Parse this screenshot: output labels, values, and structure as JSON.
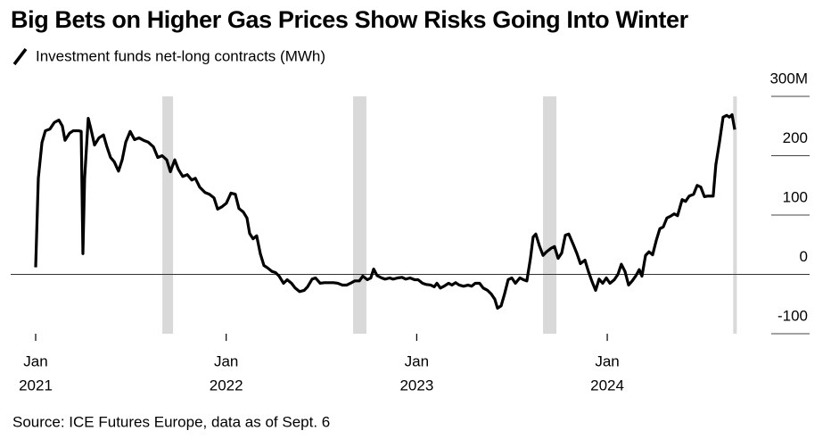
{
  "chart_data": {
    "type": "line",
    "title": "Big Bets on Higher Gas Prices Show Risks Going Into Winter",
    "source": "Source: ICE Futures Europe, data as of Sept. 6",
    "x": [
      2021.0,
      2021.014,
      2021.033,
      2021.051,
      2021.075,
      2021.098,
      2021.122,
      2021.14,
      2021.154,
      2021.178,
      2021.197,
      2021.225,
      2021.239,
      2021.248,
      2021.257,
      2021.276,
      2021.29,
      2021.309,
      2021.332,
      2021.356,
      2021.374,
      2021.393,
      2021.412,
      2021.435,
      2021.454,
      2021.473,
      2021.496,
      2021.519,
      2021.543,
      2021.566,
      2021.59,
      2021.618,
      2021.641,
      2021.664,
      2021.688,
      2021.707,
      2021.73,
      2021.749,
      2021.772,
      2021.796,
      2021.819,
      2021.838,
      2021.861,
      2021.889,
      2021.912,
      2021.936,
      2021.955,
      2021.978,
      2022.001,
      2022.025,
      2022.048,
      2022.067,
      2022.09,
      2022.109,
      2022.123,
      2022.141,
      2022.16,
      2022.179,
      2022.198,
      2022.217,
      2022.24,
      2022.259,
      2022.278,
      2022.301,
      2022.32,
      2022.343,
      2022.362,
      2022.385,
      2022.409,
      2022.427,
      2022.451,
      2022.469,
      2022.493,
      2022.516,
      2022.54,
      2022.563,
      2022.586,
      2022.61,
      2022.633,
      2022.652,
      2022.675,
      2022.699,
      2022.717,
      2022.741,
      2022.759,
      2022.774,
      2022.792,
      2022.816,
      2022.834,
      2022.858,
      2022.876,
      2022.9,
      2022.923,
      2022.942,
      2022.965,
      2022.989,
      2023.007,
      2023.031,
      2023.05,
      2023.073,
      2023.092,
      2023.106,
      2023.124,
      2023.143,
      2023.167,
      2023.185,
      2023.204,
      2023.223,
      2023.246,
      2023.27,
      2023.288,
      2023.307,
      2023.33,
      2023.349,
      2023.372,
      2023.391,
      2023.41,
      2023.424,
      2023.443,
      2023.461,
      2023.48,
      2023.499,
      2023.518,
      2023.541,
      2023.56,
      2023.578,
      2023.597,
      2023.611,
      2023.625,
      2023.644,
      2023.663,
      2023.681,
      2023.705,
      2023.723,
      2023.742,
      2023.761,
      2023.78,
      2023.798,
      2023.822,
      2023.841,
      2023.859,
      2023.883,
      2023.901,
      2023.92,
      2023.939,
      2023.957,
      2023.976,
      2023.995,
      2024.014,
      2024.037,
      2024.056,
      2024.074,
      2024.093,
      2024.112,
      2024.131,
      2024.149,
      2024.168,
      2024.182,
      2024.201,
      2024.219,
      2024.238,
      2024.257,
      2024.276,
      2024.294,
      2024.313,
      2024.332,
      2024.351,
      2024.369,
      2024.393,
      2024.411,
      2024.43,
      2024.453,
      2024.472,
      2024.491,
      2024.51,
      2024.528,
      2024.556,
      2024.57,
      2024.589,
      2024.608,
      2024.627,
      2024.641,
      2024.655,
      2024.669
    ],
    "series": [
      {
        "name": "Investment funds net-long contracts (MWh)",
        "color": "#000000",
        "values": [
          12,
          162,
          222,
          242,
          245,
          256,
          260,
          250,
          226,
          238,
          242,
          242,
          241,
          35,
          162,
          263,
          245,
          218,
          230,
          235,
          215,
          197,
          190,
          174,
          193,
          223,
          241,
          227,
          230,
          226,
          223,
          215,
          197,
          200,
          193,
          173,
          193,
          177,
          165,
          168,
          159,
          162,
          147,
          138,
          135,
          129,
          110,
          114,
          120,
          137,
          135,
          111,
          105,
          95,
          69,
          60,
          65,
          35,
          15,
          11,
          5,
          3,
          -3,
          -15,
          -9,
          -15,
          -23,
          -29,
          -27,
          -21,
          -8,
          -6,
          -15,
          -14,
          -14,
          -14,
          -15,
          -18,
          -18,
          -15,
          -11,
          -11,
          -3,
          -9,
          -6,
          9,
          -2,
          -6,
          -8,
          -6,
          -8,
          -6,
          -5,
          -8,
          -6,
          -9,
          -9,
          -15,
          -17,
          -18,
          -21,
          -15,
          -23,
          -20,
          -15,
          -18,
          -14,
          -18,
          -20,
          -18,
          -20,
          -15,
          -15,
          -23,
          -27,
          -33,
          -42,
          -57,
          -53,
          -33,
          -9,
          -6,
          -15,
          -6,
          -9,
          -11,
          27,
          63,
          68,
          48,
          32,
          38,
          44,
          47,
          27,
          36,
          66,
          68,
          50,
          35,
          18,
          24,
          5,
          -12,
          -27,
          -8,
          -15,
          -6,
          -15,
          -9,
          0,
          17,
          5,
          -18,
          -11,
          -3,
          8,
          -3,
          32,
          38,
          33,
          57,
          77,
          80,
          95,
          98,
          102,
          99,
          126,
          123,
          132,
          135,
          150,
          147,
          131,
          132,
          132,
          185,
          223,
          265,
          268,
          265,
          269,
          244
        ]
      }
    ],
    "shaded": [
      [
        2021.665,
        2021.721
      ],
      [
        2022.666,
        2022.736
      ],
      [
        2023.663,
        2023.733
      ],
      [
        2024.661,
        2024.68
      ]
    ],
    "shade_color": "#d9d9d9",
    "xlim": [
      2020.869,
      2025.062
    ],
    "xticks": [
      {
        "value": 2021,
        "label": [
          "Jan",
          "2021"
        ]
      },
      {
        "value": 2022,
        "label": [
          "Jan",
          "2022"
        ]
      },
      {
        "value": 2023,
        "label": [
          "Jan",
          "2023"
        ]
      },
      {
        "value": 2024,
        "label": [
          "Jan",
          "2024"
        ]
      }
    ],
    "ylim": [
      -100,
      300
    ],
    "yticks": [
      {
        "value": 300,
        "label": "300M"
      },
      200,
      100,
      0,
      -100
    ]
  }
}
